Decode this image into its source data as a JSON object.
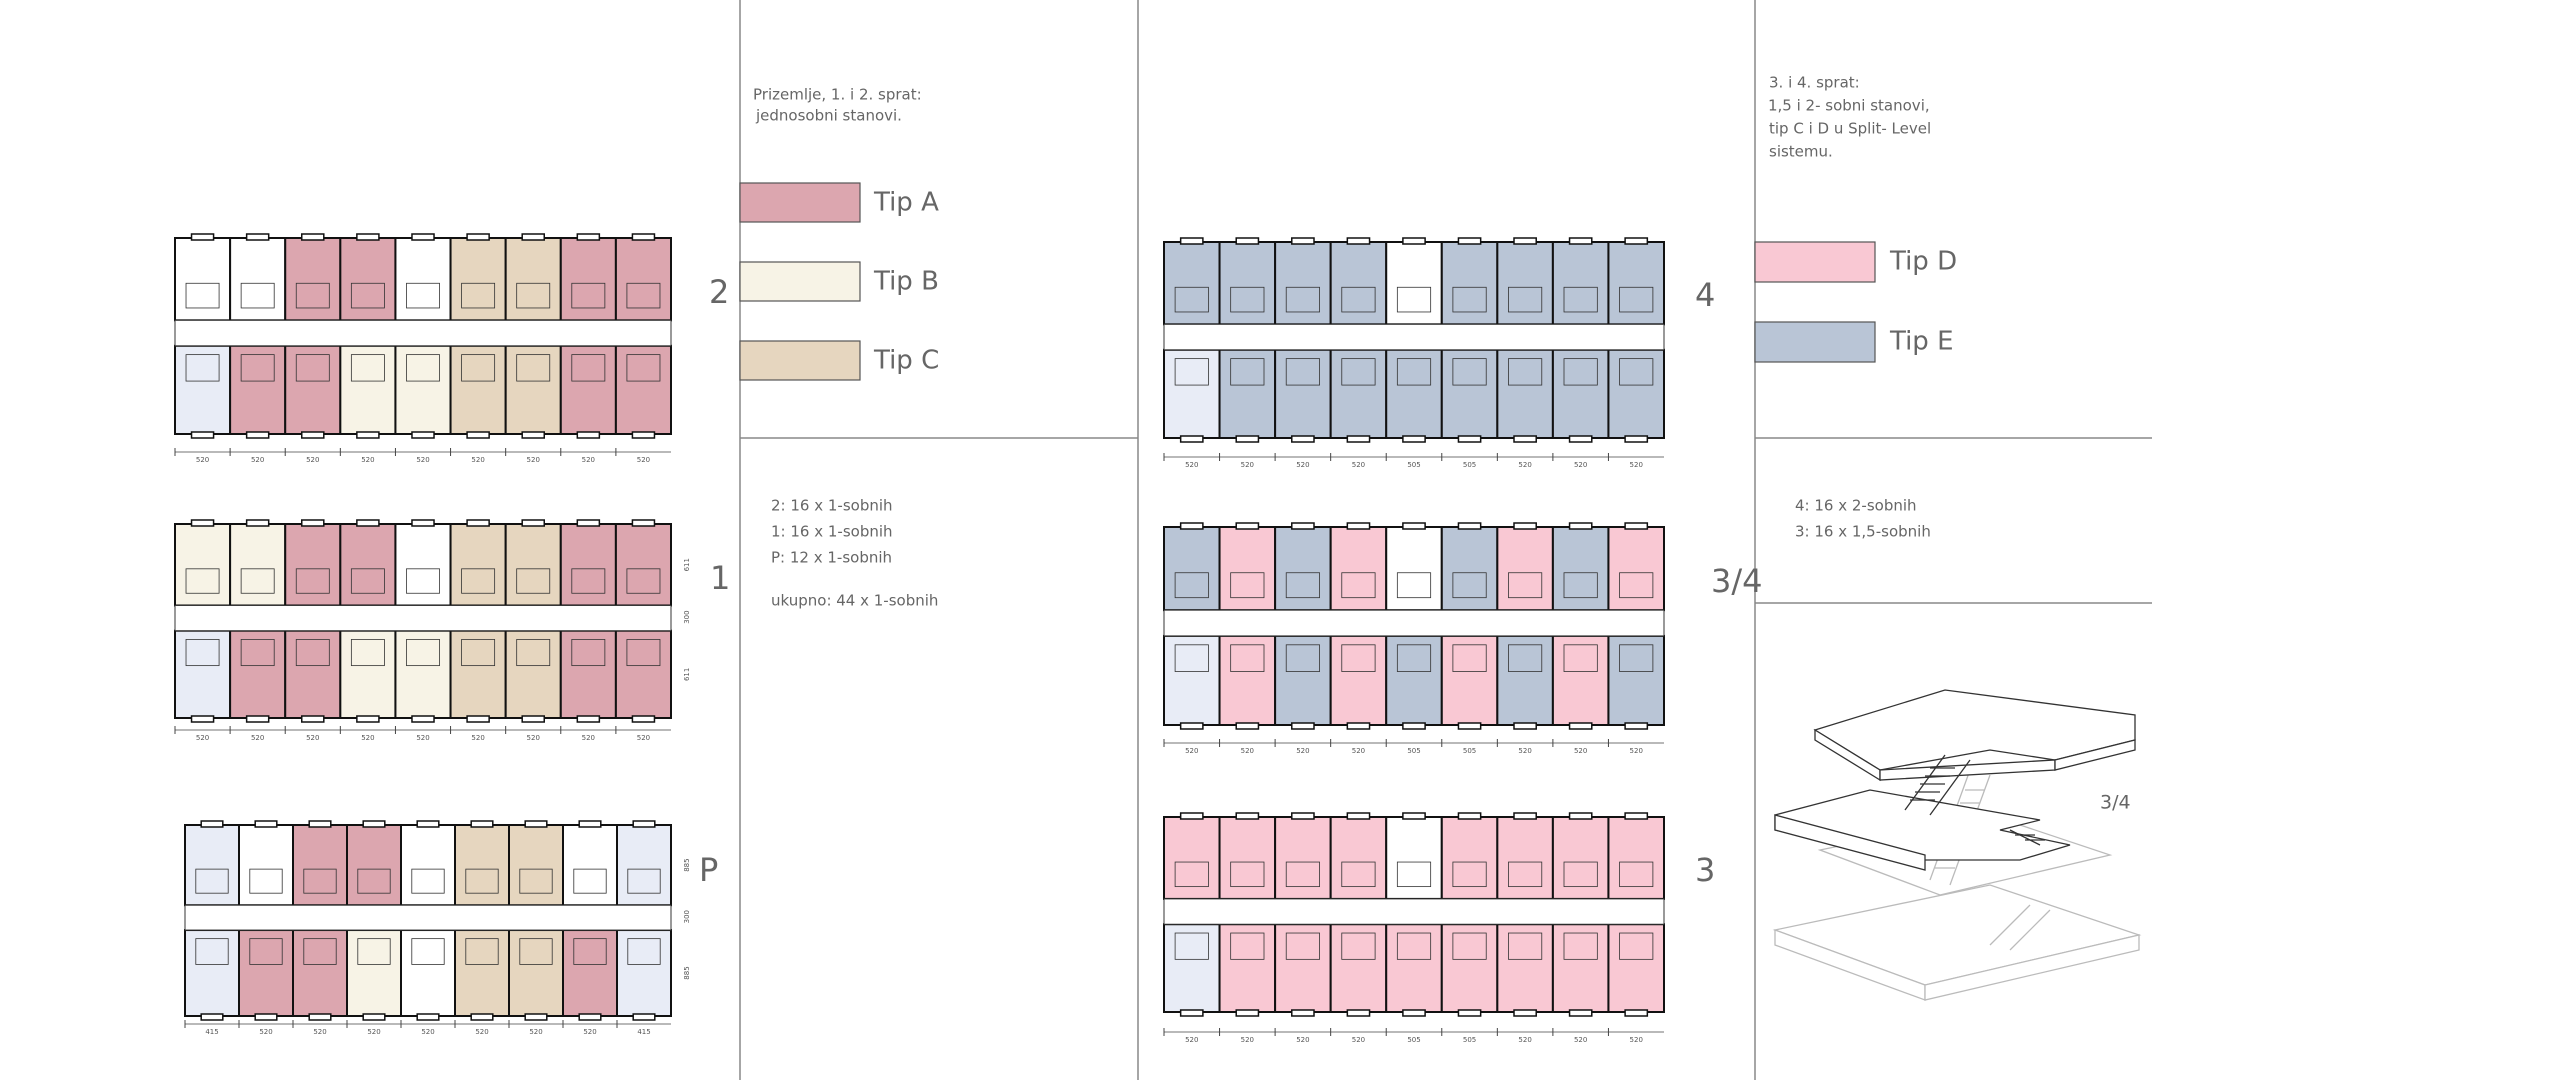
{
  "left": {
    "intro": [
      "Prizemlje, 1. i 2. sprat:",
      "jednosobni stanovi."
    ],
    "legend": [
      {
        "label": "Tip A",
        "color": "#dca6af"
      },
      {
        "label": "Tip B",
        "color": "#f7f3e6"
      },
      {
        "label": "Tip C",
        "color": "#e6d6bf"
      }
    ],
    "summary": [
      "2: 16 x 1-sobnih",
      "1: 16 x 1-sobnih",
      "P: 12 x 1-sobnih",
      "ukupno: 44 x 1-sobnih"
    ]
  },
  "right": {
    "intro": [
      "3. i 4. sprat:",
      "1,5 i 2- sobni stanovi,",
      "tip C i D u Split- Level",
      "sistemu."
    ],
    "legend": [
      {
        "label": "Tip D",
        "color": "#f9c8d3"
      },
      {
        "label": "Tip E",
        "color": "#b9c5d6"
      }
    ],
    "summary": [
      "4: 16 x 2-sobnih",
      "3: 16 x 1,5-sobnih"
    ],
    "axon_label": "3/4"
  },
  "plans": [
    {
      "label": "2",
      "dims": [
        "520",
        "520",
        "520",
        "520",
        "520",
        "520",
        "520",
        "520",
        "520"
      ],
      "side_dims": []
    },
    {
      "label": "1",
      "dims": [
        "520",
        "520",
        "520",
        "520",
        "520",
        "520",
        "520",
        "520",
        "520"
      ],
      "side_dims": [
        "611",
        "300",
        "611"
      ]
    },
    {
      "label": "P",
      "dims": [
        "415",
        "520",
        "520",
        "520",
        "520",
        "520",
        "520",
        "520",
        "415"
      ],
      "side_dims": [
        "885",
        "300",
        "885"
      ]
    },
    {
      "label": "4",
      "dims": [
        "520",
        "520",
        "520",
        "520",
        "505",
        "505",
        "520",
        "520",
        "520"
      ],
      "side_dims": []
    },
    {
      "label": "3/4",
      "dims": [
        "520",
        "520",
        "520",
        "520",
        "505",
        "505",
        "520",
        "520",
        "520"
      ],
      "side_dims": []
    },
    {
      "label": "3",
      "dims": [
        "520",
        "520",
        "520",
        "520",
        "505",
        "505",
        "520",
        "520",
        "520"
      ],
      "side_dims": []
    }
  ]
}
